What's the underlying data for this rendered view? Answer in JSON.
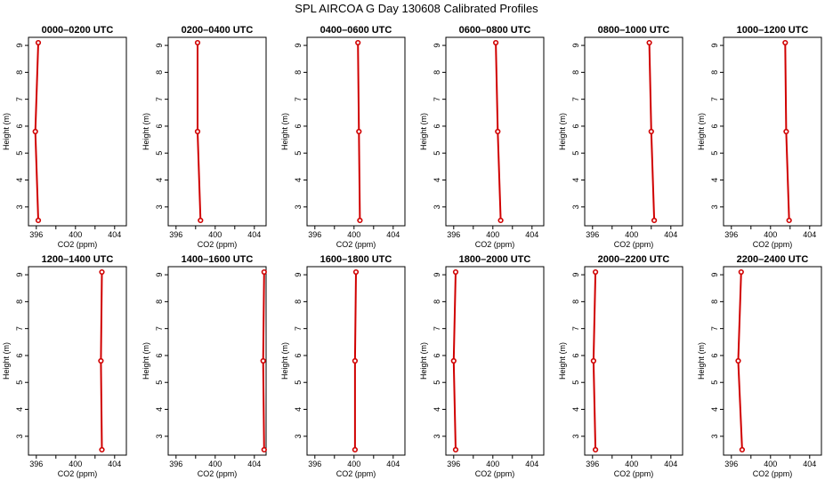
{
  "figure": {
    "title": "SPL AIRCOA G  Day 130608  Calibrated Profiles"
  },
  "chart_data": [
    {
      "type": "line",
      "title": "0000–0200 UTC",
      "xlabel": "CO2 (ppm)",
      "ylabel": "Height (m)",
      "xlim": [
        395.2,
        405.2
      ],
      "ylim": [
        2.3,
        9.3
      ],
      "xticks": [
        396,
        400,
        404
      ],
      "yticks": [
        3,
        4,
        5,
        6,
        7,
        8,
        9
      ],
      "series": [
        {
          "x": [
            396.2,
            395.9,
            396.2
          ],
          "y": [
            9.1,
            5.8,
            2.5
          ]
        }
      ],
      "marker": "circle",
      "color": "#d00000",
      "grid": false
    },
    {
      "type": "line",
      "title": "0200–0400 UTC",
      "xlabel": "CO2 (ppm)",
      "ylabel": "Height (m)",
      "xlim": [
        395.2,
        405.2
      ],
      "ylim": [
        2.3,
        9.3
      ],
      "xticks": [
        396,
        400,
        404
      ],
      "yticks": [
        3,
        4,
        5,
        6,
        7,
        8,
        9
      ],
      "series": [
        {
          "x": [
            398.2,
            398.2,
            398.5
          ],
          "y": [
            9.1,
            5.8,
            2.5
          ]
        }
      ],
      "marker": "circle",
      "color": "#d00000",
      "grid": false
    },
    {
      "type": "line",
      "title": "0400–0600 UTC",
      "xlabel": "CO2 (ppm)",
      "ylabel": "Height (m)",
      "xlim": [
        395.2,
        405.2
      ],
      "ylim": [
        2.3,
        9.3
      ],
      "xticks": [
        396,
        400,
        404
      ],
      "yticks": [
        3,
        4,
        5,
        6,
        7,
        8,
        9
      ],
      "series": [
        {
          "x": [
            400.4,
            400.5,
            400.6
          ],
          "y": [
            9.1,
            5.8,
            2.5
          ]
        }
      ],
      "marker": "circle",
      "color": "#d00000",
      "grid": false
    },
    {
      "type": "line",
      "title": "0600–0800 UTC",
      "xlabel": "CO2 (ppm)",
      "ylabel": "Height (m)",
      "xlim": [
        395.2,
        405.2
      ],
      "ylim": [
        2.3,
        9.3
      ],
      "xticks": [
        396,
        400,
        404
      ],
      "yticks": [
        3,
        4,
        5,
        6,
        7,
        8,
        9
      ],
      "series": [
        {
          "x": [
            400.3,
            400.5,
            400.8
          ],
          "y": [
            9.1,
            5.8,
            2.5
          ]
        }
      ],
      "marker": "circle",
      "color": "#d00000",
      "grid": false
    },
    {
      "type": "line",
      "title": "0800–1000 UTC",
      "xlabel": "CO2 (ppm)",
      "ylabel": "Height (m)",
      "xlim": [
        395.2,
        405.2
      ],
      "ylim": [
        2.3,
        9.3
      ],
      "xticks": [
        396,
        400,
        404
      ],
      "yticks": [
        3,
        4,
        5,
        6,
        7,
        8,
        9
      ],
      "series": [
        {
          "x": [
            401.8,
            402.0,
            402.3
          ],
          "y": [
            9.1,
            5.8,
            2.5
          ]
        }
      ],
      "marker": "circle",
      "color": "#d00000",
      "grid": false
    },
    {
      "type": "line",
      "title": "1000–1200 UTC",
      "xlabel": "CO2 (ppm)",
      "ylabel": "Height (m)",
      "xlim": [
        395.2,
        405.2
      ],
      "ylim": [
        2.3,
        9.3
      ],
      "xticks": [
        396,
        400,
        404
      ],
      "yticks": [
        3,
        4,
        5,
        6,
        7,
        8,
        9
      ],
      "series": [
        {
          "x": [
            401.5,
            401.6,
            401.9
          ],
          "y": [
            9.1,
            5.8,
            2.5
          ]
        }
      ],
      "marker": "circle",
      "color": "#d00000",
      "grid": false
    },
    {
      "type": "line",
      "title": "1200–1400 UTC",
      "xlabel": "CO2 (ppm)",
      "ylabel": "Height (m)",
      "xlim": [
        395.2,
        405.2
      ],
      "ylim": [
        2.3,
        9.3
      ],
      "xticks": [
        396,
        400,
        404
      ],
      "yticks": [
        3,
        4,
        5,
        6,
        7,
        8,
        9
      ],
      "series": [
        {
          "x": [
            402.7,
            402.6,
            402.7
          ],
          "y": [
            9.1,
            5.8,
            2.5
          ]
        }
      ],
      "marker": "circle",
      "color": "#d00000",
      "grid": false
    },
    {
      "type": "line",
      "title": "1400–1600 UTC",
      "xlabel": "CO2 (ppm)",
      "ylabel": "Height (m)",
      "xlim": [
        395.2,
        405.2
      ],
      "ylim": [
        2.3,
        9.3
      ],
      "xticks": [
        396,
        400,
        404
      ],
      "yticks": [
        3,
        4,
        5,
        6,
        7,
        8,
        9
      ],
      "series": [
        {
          "x": [
            405.0,
            404.9,
            405.0
          ],
          "y": [
            9.1,
            5.8,
            2.5
          ]
        }
      ],
      "marker": "circle",
      "color": "#d00000",
      "grid": false
    },
    {
      "type": "line",
      "title": "1600–1800 UTC",
      "xlabel": "CO2 (ppm)",
      "ylabel": "Height (m)",
      "xlim": [
        395.2,
        405.2
      ],
      "ylim": [
        2.3,
        9.3
      ],
      "xticks": [
        396,
        400,
        404
      ],
      "yticks": [
        3,
        4,
        5,
        6,
        7,
        8,
        9
      ],
      "series": [
        {
          "x": [
            400.2,
            400.1,
            400.1
          ],
          "y": [
            9.1,
            5.8,
            2.5
          ]
        }
      ],
      "marker": "circle",
      "color": "#d00000",
      "grid": false
    },
    {
      "type": "line",
      "title": "1800–2000 UTC",
      "xlabel": "CO2 (ppm)",
      "ylabel": "Height (m)",
      "xlim": [
        395.2,
        405.2
      ],
      "ylim": [
        2.3,
        9.3
      ],
      "xticks": [
        396,
        400,
        404
      ],
      "yticks": [
        3,
        4,
        5,
        6,
        7,
        8,
        9
      ],
      "series": [
        {
          "x": [
            396.2,
            396.0,
            396.2
          ],
          "y": [
            9.1,
            5.8,
            2.5
          ]
        }
      ],
      "marker": "circle",
      "color": "#d00000",
      "grid": false
    },
    {
      "type": "line",
      "title": "2000–2200 UTC",
      "xlabel": "CO2 (ppm)",
      "ylabel": "Height (m)",
      "xlim": [
        395.2,
        405.2
      ],
      "ylim": [
        2.3,
        9.3
      ],
      "xticks": [
        396,
        400,
        404
      ],
      "yticks": [
        3,
        4,
        5,
        6,
        7,
        8,
        9
      ],
      "series": [
        {
          "x": [
            396.3,
            396.1,
            396.3
          ],
          "y": [
            9.1,
            5.8,
            2.5
          ]
        }
      ],
      "marker": "circle",
      "color": "#d00000",
      "grid": false
    },
    {
      "type": "line",
      "title": "2200–2400 UTC",
      "xlabel": "CO2 (ppm)",
      "ylabel": "Height (m)",
      "xlim": [
        395.2,
        405.2
      ],
      "ylim": [
        2.3,
        9.3
      ],
      "xticks": [
        396,
        400,
        404
      ],
      "yticks": [
        3,
        4,
        5,
        6,
        7,
        8,
        9
      ],
      "series": [
        {
          "x": [
            397.0,
            396.7,
            397.1
          ],
          "y": [
            9.1,
            5.8,
            2.5
          ]
        }
      ],
      "marker": "circle",
      "color": "#d00000",
      "grid": false
    }
  ]
}
